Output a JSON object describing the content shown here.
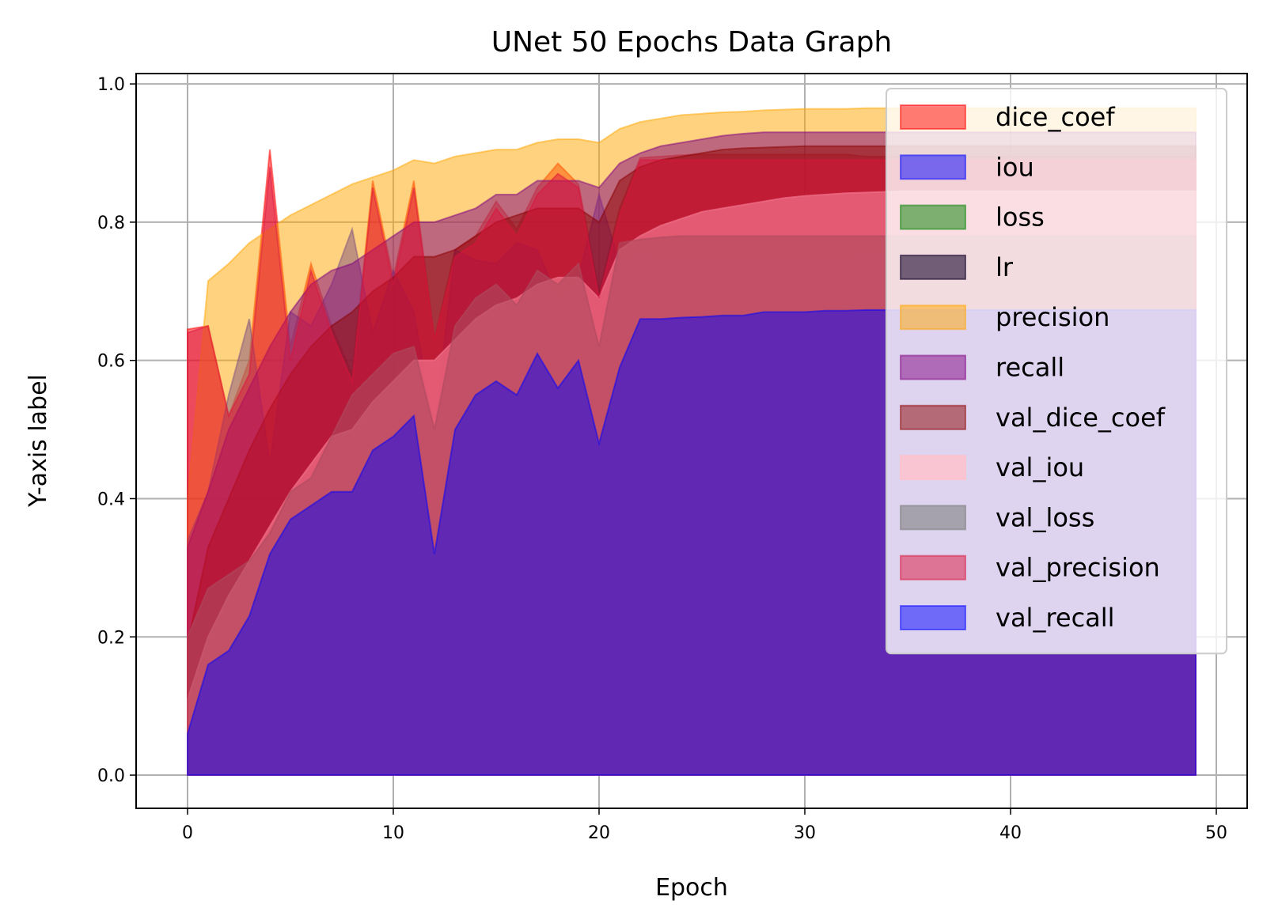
{
  "chart_data": {
    "type": "area",
    "title": "UNet 50 Epochs Data Graph",
    "xlabel": "Epoch",
    "ylabel": "Y-axis label",
    "xlim": [
      -2.5,
      51.5
    ],
    "ylim": [
      -0.048,
      1.015
    ],
    "xticks": [
      0,
      10,
      20,
      30,
      40,
      50
    ],
    "yticks": [
      0.0,
      0.2,
      0.4,
      0.6,
      0.8,
      1.0
    ],
    "xtick_labels": [
      "0",
      "10",
      "20",
      "30",
      "40",
      "50"
    ],
    "ytick_labels": [
      "0.0",
      "0.2",
      "0.4",
      "0.6",
      "0.8",
      "1.0"
    ],
    "grid": true,
    "legend_position": "top-right",
    "series": [
      {
        "name": "dice_coef",
        "color": "#ff0000",
        "alpha": 0.5,
        "values": [
          0.645,
          0.65,
          0.52,
          0.6,
          0.905,
          0.62,
          0.74,
          0.65,
          0.58,
          0.86,
          0.72,
          0.86,
          0.63,
          0.76,
          0.78,
          0.83,
          0.79,
          0.85,
          0.885,
          0.855,
          0.7,
          0.82,
          0.893,
          0.895,
          0.897,
          0.898,
          0.898,
          0.898,
          0.898,
          0.898,
          0.898,
          0.898,
          0.898,
          0.895,
          0.895,
          0.895,
          0.895,
          0.895,
          0.895,
          0.895,
          0.895,
          0.895,
          0.895,
          0.895,
          0.895,
          0.895,
          0.895,
          0.895,
          0.895,
          0.895
        ]
      },
      {
        "name": "iou",
        "color": "#0000ff",
        "alpha": 0.5,
        "values": [
          0.34,
          0.41,
          0.55,
          0.66,
          0.45,
          0.67,
          0.65,
          0.71,
          0.79,
          0.64,
          0.73,
          0.67,
          0.5,
          0.76,
          0.745,
          0.74,
          0.77,
          0.76,
          0.69,
          0.72,
          0.84,
          0.74,
          0.755,
          0.75,
          0.75,
          0.75,
          0.745,
          0.745,
          0.75,
          0.75,
          0.75,
          0.75,
          0.75,
          0.755,
          0.755,
          0.755,
          0.755,
          0.755,
          0.755,
          0.755,
          0.755,
          0.755,
          0.755,
          0.755,
          0.755,
          0.755,
          0.755,
          0.755,
          0.755,
          0.755
        ]
      },
      {
        "name": "loss",
        "color": "#008000",
        "alpha": 0.5,
        "values": [
          0.075,
          0.06,
          0.058,
          0.05,
          0.04,
          0.038,
          0.036,
          0.035,
          0.035,
          0.03,
          0.028,
          0.028,
          0.048,
          0.03,
          0.028,
          0.027,
          0.027,
          0.026,
          0.026,
          0.026,
          0.03,
          0.025,
          0.024,
          0.024,
          0.024,
          0.024,
          0.024,
          0.024,
          0.024,
          0.024,
          0.024,
          0.024,
          0.024,
          0.024,
          0.024,
          0.024,
          0.024,
          0.024,
          0.024,
          0.024,
          0.024,
          0.024,
          0.024,
          0.024,
          0.024,
          0.024,
          0.024,
          0.024,
          0.024,
          0.024
        ]
      },
      {
        "name": "lr",
        "color": "#1a0a2e",
        "alpha": 0.6,
        "values": [
          0.001,
          0.001,
          0.001,
          0.001,
          0.001,
          0.001,
          0.001,
          0.001,
          0.001,
          0.001,
          0.001,
          0.001,
          0.001,
          0.001,
          0.001,
          0.001,
          0.001,
          0.001,
          0.001,
          0.001,
          0.001,
          0.001,
          0.001,
          0.001,
          0.001,
          0.001,
          0.001,
          0.001,
          0.001,
          0.001,
          0.001,
          0.001,
          0.001,
          0.001,
          0.001,
          0.001,
          0.001,
          0.001,
          0.001,
          0.001,
          0.001,
          0.001,
          0.001,
          0.001,
          0.001,
          0.001,
          0.001,
          0.001,
          0.001,
          0.001
        ]
      },
      {
        "name": "precision",
        "color": "#ffa500",
        "alpha": 0.5,
        "values": [
          0.4,
          0.715,
          0.74,
          0.77,
          0.79,
          0.81,
          0.825,
          0.84,
          0.855,
          0.865,
          0.875,
          0.89,
          0.885,
          0.895,
          0.9,
          0.905,
          0.905,
          0.915,
          0.92,
          0.92,
          0.915,
          0.935,
          0.945,
          0.95,
          0.955,
          0.957,
          0.959,
          0.96,
          0.962,
          0.963,
          0.964,
          0.964,
          0.964,
          0.965,
          0.965,
          0.965,
          0.965,
          0.965,
          0.965,
          0.965,
          0.965,
          0.965,
          0.965,
          0.965,
          0.965,
          0.965,
          0.965,
          0.965,
          0.965,
          0.965
        ]
      },
      {
        "name": "recall",
        "color": "#800080",
        "alpha": 0.5,
        "values": [
          0.33,
          0.41,
          0.5,
          0.56,
          0.62,
          0.67,
          0.71,
          0.73,
          0.74,
          0.76,
          0.78,
          0.8,
          0.8,
          0.81,
          0.82,
          0.84,
          0.84,
          0.86,
          0.86,
          0.86,
          0.85,
          0.885,
          0.9,
          0.91,
          0.915,
          0.92,
          0.925,
          0.928,
          0.93,
          0.93,
          0.93,
          0.93,
          0.93,
          0.93,
          0.93,
          0.93,
          0.93,
          0.93,
          0.93,
          0.93,
          0.93,
          0.93,
          0.93,
          0.93,
          0.93,
          0.93,
          0.93,
          0.93,
          0.93,
          0.93
        ]
      },
      {
        "name": "val_dice_coef",
        "color": "#8b0000",
        "alpha": 0.5,
        "values": [
          0.19,
          0.33,
          0.4,
          0.47,
          0.53,
          0.58,
          0.62,
          0.65,
          0.67,
          0.7,
          0.72,
          0.75,
          0.75,
          0.76,
          0.78,
          0.8,
          0.81,
          0.82,
          0.82,
          0.82,
          0.8,
          0.86,
          0.88,
          0.89,
          0.895,
          0.9,
          0.905,
          0.907,
          0.908,
          0.909,
          0.91,
          0.91,
          0.91,
          0.91,
          0.91,
          0.91,
          0.91,
          0.91,
          0.91,
          0.91,
          0.91,
          0.91,
          0.91,
          0.91,
          0.91,
          0.91,
          0.91,
          0.91,
          0.91,
          0.91
        ]
      },
      {
        "name": "val_iou",
        "color": "#ffc0cb",
        "alpha": 0.8,
        "values": [
          0.11,
          0.2,
          0.26,
          0.31,
          0.36,
          0.41,
          0.45,
          0.49,
          0.5,
          0.54,
          0.57,
          0.6,
          0.6,
          0.63,
          0.66,
          0.68,
          0.69,
          0.71,
          0.72,
          0.72,
          0.69,
          0.76,
          0.78,
          0.795,
          0.805,
          0.815,
          0.82,
          0.825,
          0.83,
          0.835,
          0.838,
          0.84,
          0.842,
          0.843,
          0.844,
          0.845,
          0.845,
          0.845,
          0.845,
          0.845,
          0.845,
          0.845,
          0.845,
          0.845,
          0.845,
          0.845,
          0.845,
          0.845,
          0.845,
          0.845
        ]
      },
      {
        "name": "val_loss",
        "color": "#808080",
        "alpha": 0.6,
        "values": [
          0.2,
          0.27,
          0.29,
          0.31,
          0.35,
          0.41,
          0.43,
          0.49,
          0.55,
          0.58,
          0.61,
          0.62,
          0.5,
          0.65,
          0.69,
          0.71,
          0.68,
          0.73,
          0.71,
          0.74,
          0.62,
          0.77,
          0.775,
          0.778,
          0.78,
          0.78,
          0.78,
          0.78,
          0.78,
          0.78,
          0.78,
          0.78,
          0.78,
          0.78,
          0.78,
          0.78,
          0.78,
          0.78,
          0.78,
          0.78,
          0.78,
          0.78,
          0.78,
          0.78,
          0.78,
          0.78,
          0.78,
          0.78,
          0.78,
          0.78
        ]
      },
      {
        "name": "val_precision",
        "color": "#dc143c",
        "alpha": 0.5,
        "values": [
          0.64,
          0.65,
          0.52,
          0.58,
          0.88,
          0.6,
          0.73,
          0.64,
          0.57,
          0.85,
          0.71,
          0.85,
          0.63,
          0.75,
          0.77,
          0.82,
          0.78,
          0.84,
          0.87,
          0.85,
          0.69,
          0.81,
          0.89,
          0.89,
          0.89,
          0.89,
          0.89,
          0.89,
          0.89,
          0.89,
          0.89,
          0.89,
          0.89,
          0.89,
          0.89,
          0.89,
          0.89,
          0.89,
          0.89,
          0.89,
          0.89,
          0.89,
          0.89,
          0.89,
          0.89,
          0.89,
          0.89,
          0.89,
          0.89,
          0.89
        ]
      },
      {
        "name": "val_recall",
        "color": "#0000ff",
        "alpha": 0.5,
        "values": [
          0.06,
          0.16,
          0.18,
          0.23,
          0.32,
          0.37,
          0.39,
          0.41,
          0.41,
          0.47,
          0.49,
          0.52,
          0.32,
          0.5,
          0.55,
          0.57,
          0.55,
          0.61,
          0.56,
          0.6,
          0.48,
          0.59,
          0.66,
          0.66,
          0.662,
          0.663,
          0.665,
          0.665,
          0.67,
          0.67,
          0.67,
          0.672,
          0.672,
          0.673,
          0.673,
          0.673,
          0.673,
          0.673,
          0.673,
          0.673,
          0.673,
          0.673,
          0.673,
          0.673,
          0.673,
          0.673,
          0.673,
          0.673,
          0.673,
          0.673
        ]
      }
    ]
  }
}
